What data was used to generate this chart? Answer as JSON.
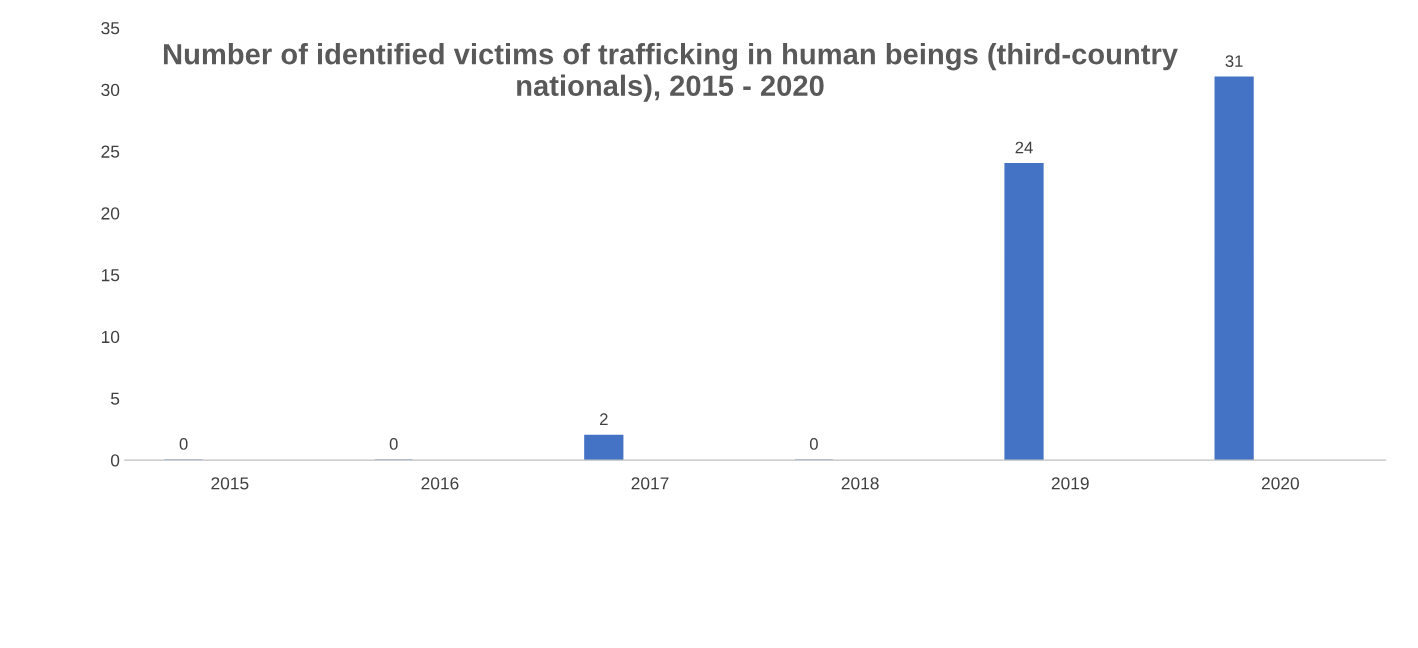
{
  "chart_data": {
    "type": "bar",
    "title": "Number of identified victims of trafficking in human beings (third-country nationals), 2015 - 2020",
    "categories": [
      "2015",
      "2016",
      "2017",
      "2018",
      "2019",
      "2020"
    ],
    "values": [
      0,
      0,
      2,
      0,
      24,
      31
    ],
    "color": "#4472c4",
    "ylim": [
      0,
      35
    ],
    "yticks": [
      0,
      5,
      10,
      15,
      20,
      25,
      30,
      35
    ],
    "grid": false,
    "data_labels": true
  }
}
